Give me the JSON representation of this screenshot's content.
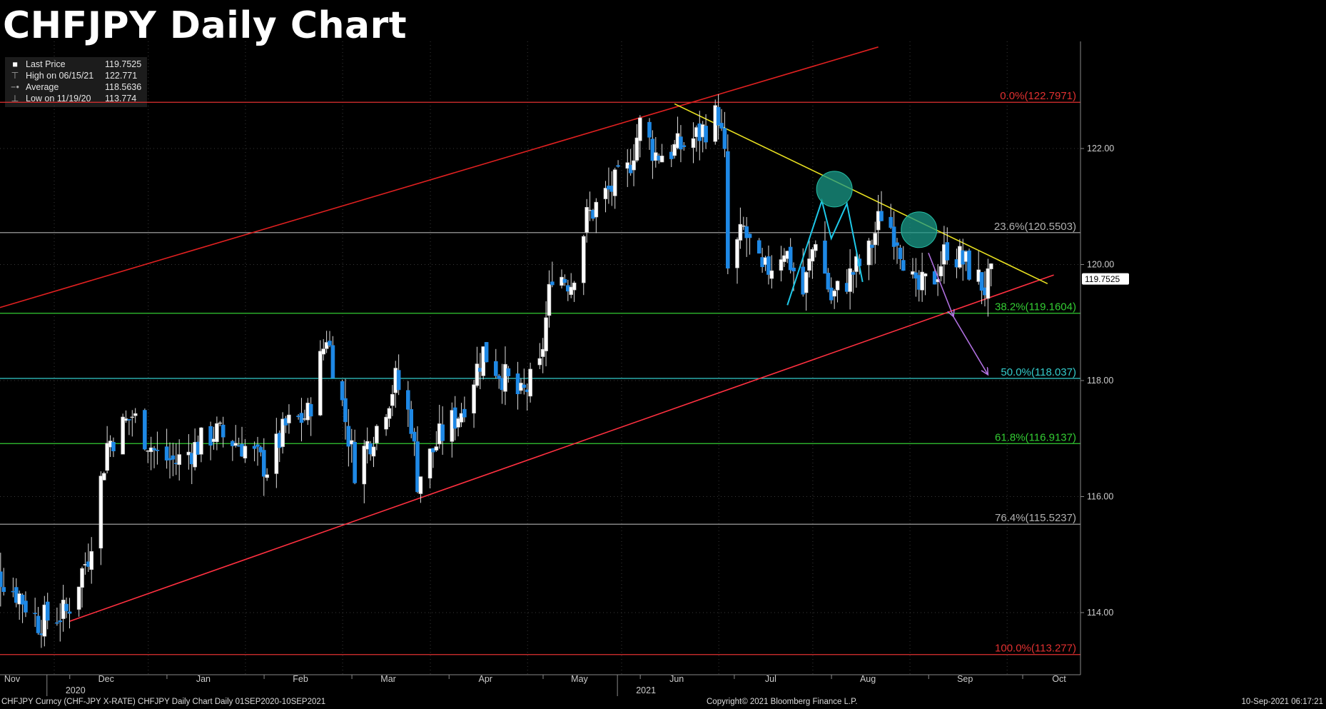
{
  "page": {
    "title": "CHFJPY Daily Chart",
    "footer_left": "CHFJPY Curncy (CHF-JPY X-RATE) CHFJPY Daily Chart  Daily 01SEP2020-10SEP2021",
    "footer_mid": "Copyright© 2021 Bloomberg Finance L.P.",
    "footer_right": "10-Sep-2021 06:17:21"
  },
  "legend": [
    {
      "icon": "square-icon",
      "label": "Last Price",
      "value": "119.7525"
    },
    {
      "icon": "high-marker-icon",
      "label": "High on 06/15/21",
      "value": "122.771"
    },
    {
      "icon": "average-marker-icon",
      "label": "Average",
      "value": "118.5636"
    },
    {
      "icon": "low-marker-icon",
      "label": "Low on 11/19/20",
      "value": "113.774"
    }
  ],
  "chart_data": {
    "type": "candlestick",
    "title": "CHFJPY Daily Chart",
    "xlabel": "",
    "ylabel": "",
    "ylim": [
      112.8,
      123.7
    ],
    "y_ticks": [
      "114.00",
      "116.00",
      "118.00",
      "120.00",
      "122.00"
    ],
    "x_ticks": [
      {
        "label": "Nov",
        "date": "2020-11-01"
      },
      {
        "label": "Dec",
        "date": "2020-12-01"
      },
      {
        "label": "Jan",
        "date": "2021-01-01"
      },
      {
        "label": "Feb",
        "date": "2021-02-01"
      },
      {
        "label": "Mar",
        "date": "2021-03-01"
      },
      {
        "label": "Apr",
        "date": "2021-04-01"
      },
      {
        "label": "May",
        "date": "2021-05-01"
      },
      {
        "label": "Jun",
        "date": "2021-06-01"
      },
      {
        "label": "Jul",
        "date": "2021-07-01"
      },
      {
        "label": "Aug",
        "date": "2021-08-01"
      },
      {
        "label": "Sep",
        "date": "2021-09-01"
      },
      {
        "label": "Oct",
        "date": "2021-10-01"
      }
    ],
    "year_labels": [
      {
        "label": "2020",
        "date": "2020-12-01"
      },
      {
        "label": "2021",
        "date": "2021-06-01"
      }
    ],
    "last_price": 119.7525,
    "grid": true,
    "fib_levels": [
      {
        "label": "0.0%(122.7971)",
        "value": 122.7971,
        "color": "#e03030"
      },
      {
        "label": "23.6%(120.5503)",
        "value": 120.5503,
        "color": "#b0b0b0"
      },
      {
        "label": "38.2%(119.1604)",
        "value": 119.1604,
        "color": "#33cc33"
      },
      {
        "label": "50.0%(118.037)",
        "value": 118.037,
        "color": "#33cccc"
      },
      {
        "label": "61.8%(116.9137)",
        "value": 116.9137,
        "color": "#33cc33"
      },
      {
        "label": "76.4%(115.5237)",
        "value": 115.5237,
        "color": "#b0b0b0"
      },
      {
        "label": "100.0%(113.277)",
        "value": 113.277,
        "color": "#e03030"
      }
    ],
    "trendlines": [
      {
        "name": "channel-upper",
        "color": "#e02020",
        "p1": [
          "2020-10-22",
          119.15
        ],
        "p2": [
          "2021-08-05",
          123.75
        ]
      },
      {
        "name": "channel-lower",
        "color": "#ff3040",
        "p1": [
          "2020-11-20",
          113.85
        ],
        "p2": [
          "2021-09-30",
          119.82
        ]
      },
      {
        "name": "descending-resistance",
        "color": "#e8e020",
        "p1": [
          "2021-06-01",
          122.77
        ],
        "p2": [
          "2021-09-28",
          119.67
        ]
      }
    ],
    "pattern_lines": [
      {
        "color": "#1ec8e8",
        "points": [
          [
            "2021-07-07",
            119.3
          ],
          [
            "2021-07-18",
            121.1
          ],
          [
            "2021-07-21",
            120.45
          ],
          [
            "2021-07-26",
            121.05
          ],
          [
            "2021-07-31",
            119.7
          ]
        ]
      }
    ],
    "forecast_arrows": [
      {
        "color": "#b070e0",
        "from": [
          "2021-08-21",
          120.2
        ],
        "to": [
          "2021-08-29",
          119.1
        ]
      },
      {
        "color": "#b070e0",
        "from": [
          "2021-08-29",
          119.1
        ],
        "to": [
          "2021-09-09",
          118.1
        ]
      }
    ],
    "highlight_circles": [
      {
        "color": "#1a9a88",
        "center": [
          "2021-07-22",
          121.3
        ]
      },
      {
        "color": "#1a9a88",
        "center": [
          "2021-08-18",
          120.6
        ]
      }
    ],
    "anchors": [
      {
        "date": "2020-10-22",
        "close": 115.0
      },
      {
        "date": "2020-11-04",
        "close": 114.3
      },
      {
        "date": "2020-11-10",
        "close": 113.85
      },
      {
        "date": "2020-11-19",
        "close": 114.0
      },
      {
        "date": "2020-11-26",
        "close": 115.0
      },
      {
        "date": "2020-12-02",
        "close": 116.9
      },
      {
        "date": "2020-12-10",
        "close": 117.4
      },
      {
        "date": "2020-12-18",
        "close": 116.7
      },
      {
        "date": "2020-12-24",
        "close": 116.6
      },
      {
        "date": "2021-01-05",
        "close": 117.1
      },
      {
        "date": "2021-01-14",
        "close": 116.9
      },
      {
        "date": "2021-01-22",
        "close": 116.5
      },
      {
        "date": "2021-01-28",
        "close": 117.2
      },
      {
        "date": "2021-02-04",
        "close": 117.4
      },
      {
        "date": "2021-02-10",
        "close": 118.8
      },
      {
        "date": "2021-02-15",
        "close": 117.6
      },
      {
        "date": "2021-02-19",
        "close": 116.5
      },
      {
        "date": "2021-02-26",
        "close": 117.2
      },
      {
        "date": "2021-03-04",
        "close": 118.0
      },
      {
        "date": "2021-03-09",
        "close": 117.3
      },
      {
        "date": "2021-03-11",
        "close": 116.3
      },
      {
        "date": "2021-03-18",
        "close": 117.0
      },
      {
        "date": "2021-03-25",
        "close": 117.5
      },
      {
        "date": "2021-04-01",
        "close": 118.5
      },
      {
        "date": "2021-04-07",
        "close": 118.1
      },
      {
        "date": "2021-04-13",
        "close": 117.7
      },
      {
        "date": "2021-04-19",
        "close": 118.2
      },
      {
        "date": "2021-04-23",
        "close": 119.9
      },
      {
        "date": "2021-04-29",
        "close": 119.7
      },
      {
        "date": "2021-05-04",
        "close": 120.8
      },
      {
        "date": "2021-05-10",
        "close": 121.2
      },
      {
        "date": "2021-05-17",
        "close": 121.6
      },
      {
        "date": "2021-05-21",
        "close": 122.4
      },
      {
        "date": "2021-05-26",
        "close": 121.9
      },
      {
        "date": "2021-06-02",
        "close": 122.0
      },
      {
        "date": "2021-06-08",
        "close": 122.2
      },
      {
        "date": "2021-06-15",
        "close": 122.6
      },
      {
        "date": "2021-06-17",
        "close": 121.8
      },
      {
        "date": "2021-06-18",
        "close": 119.9
      },
      {
        "date": "2021-06-23",
        "close": 120.6
      },
      {
        "date": "2021-06-29",
        "close": 119.8
      },
      {
        "date": "2021-07-06",
        "close": 120.3
      },
      {
        "date": "2021-07-12",
        "close": 119.5
      },
      {
        "date": "2021-07-16",
        "close": 120.5
      },
      {
        "date": "2021-07-21",
        "close": 119.4
      },
      {
        "date": "2021-07-27",
        "close": 119.8
      },
      {
        "date": "2021-08-02",
        "close": 120.2
      },
      {
        "date": "2021-08-06",
        "close": 120.9
      },
      {
        "date": "2021-08-11",
        "close": 120.5
      },
      {
        "date": "2021-08-17",
        "close": 119.5
      },
      {
        "date": "2021-08-23",
        "close": 119.8
      },
      {
        "date": "2021-08-27",
        "close": 120.3
      },
      {
        "date": "2021-09-02",
        "close": 120.0
      },
      {
        "date": "2021-09-08",
        "close": 119.6
      },
      {
        "date": "2021-09-10",
        "close": 119.75
      }
    ]
  },
  "colors": {
    "background": "#000000",
    "grid": "#3a3a3a",
    "up_candle": "#ffffff",
    "down_candle": "#1e88e5",
    "axis_text": "#cccccc"
  }
}
